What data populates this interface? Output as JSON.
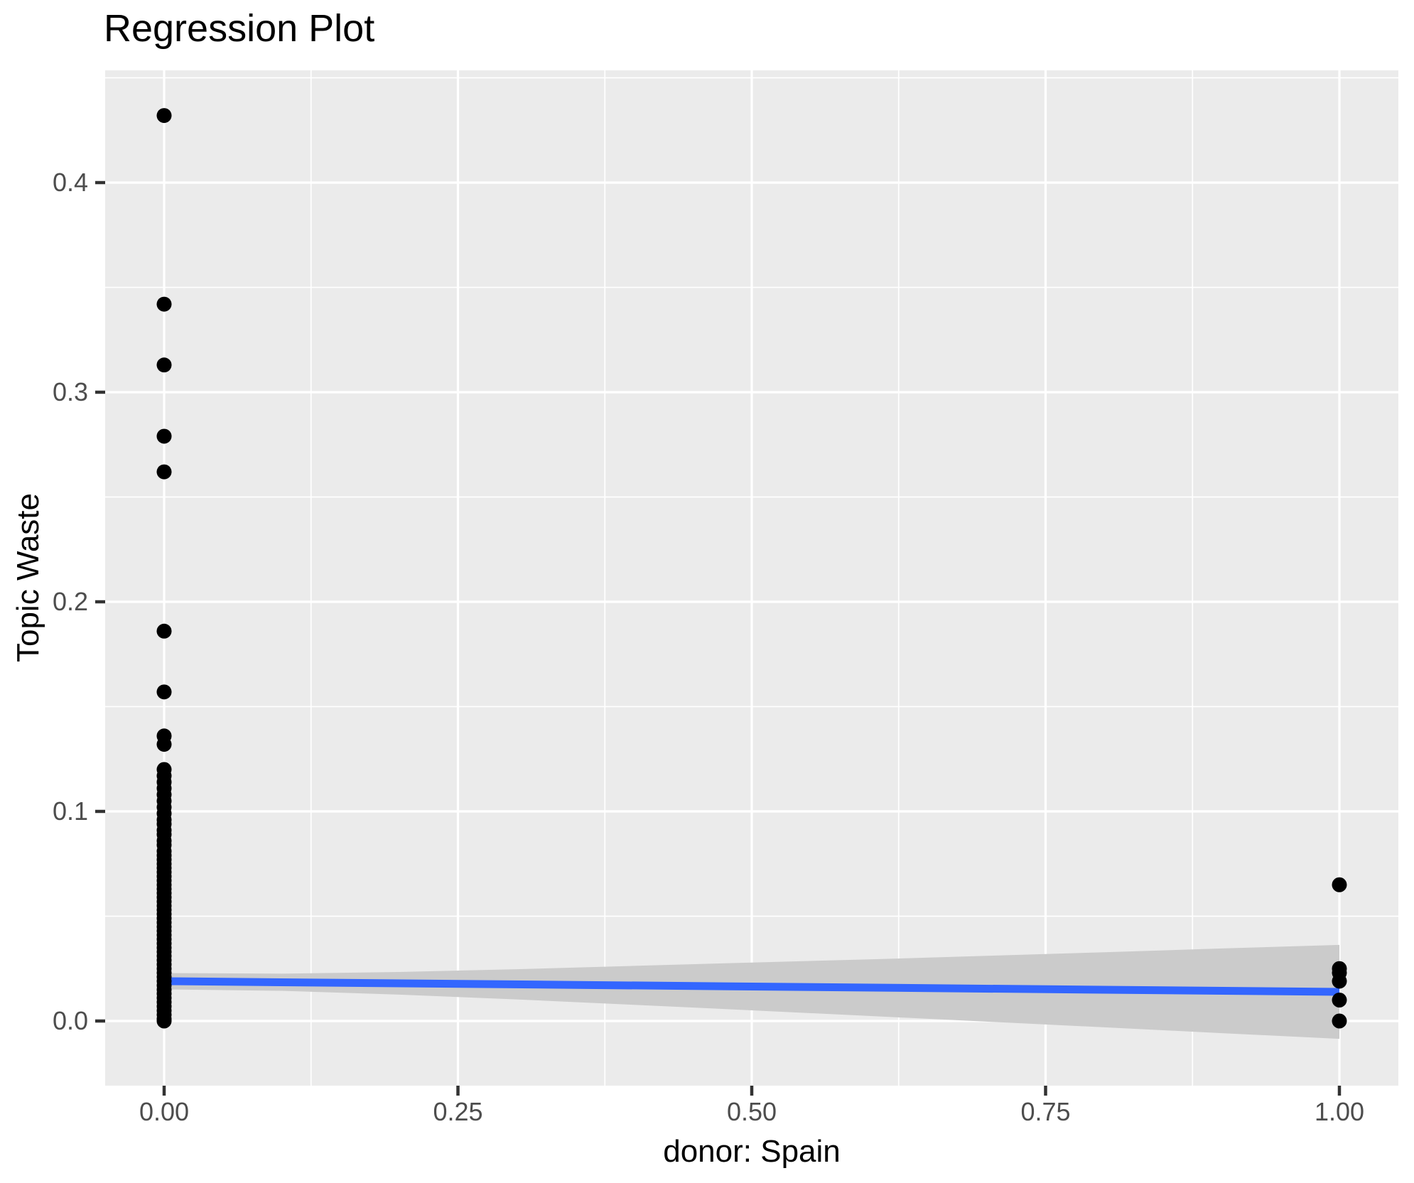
{
  "title": "Regression Plot",
  "chart_data": {
    "type": "scatter",
    "title": "Regression Plot",
    "xlabel": "donor: Spain",
    "ylabel": "Topic Waste",
    "xlim": [
      -0.05,
      1.05
    ],
    "ylim": [
      -0.031,
      0.454
    ],
    "grid": true,
    "legend": false,
    "x_ticks": {
      "values": [
        0,
        0.25,
        0.5,
        0.75,
        1.0
      ],
      "labels": [
        "0.00",
        "0.25",
        "0.50",
        "0.75",
        "1.00"
      ]
    },
    "y_ticks": {
      "values": [
        0.0,
        0.1,
        0.2,
        0.3,
        0.4
      ],
      "labels": [
        "0.0",
        "0.1",
        "0.2",
        "0.3",
        "0.4"
      ]
    },
    "x_minor": [
      0.125,
      0.375,
      0.625,
      0.875
    ],
    "y_minor": [
      0.05,
      0.15,
      0.25,
      0.35,
      0.45
    ],
    "series": [
      {
        "name": "points at donor=0",
        "x_value": 0,
        "y_values": [
          0.432,
          0.342,
          0.313,
          0.279,
          0.262,
          0.186,
          0.157,
          0.136,
          0.132,
          0.12,
          0.117,
          0.114,
          0.111,
          0.108,
          0.105,
          0.102,
          0.099,
          0.096,
          0.094,
          0.091,
          0.089,
          0.086,
          0.084,
          0.081,
          0.079,
          0.077,
          0.075,
          0.073,
          0.071,
          0.069,
          0.067,
          0.065,
          0.063,
          0.061,
          0.059,
          0.057,
          0.055,
          0.053,
          0.051,
          0.049,
          0.047,
          0.045,
          0.043,
          0.041,
          0.039,
          0.037,
          0.035,
          0.033,
          0.031,
          0.029,
          0.027,
          0.025,
          0.023,
          0.021,
          0.019,
          0.017,
          0.015,
          0.013,
          0.011,
          0.009,
          0.007,
          0.005,
          0.003,
          0.001,
          0.0
        ]
      },
      {
        "name": "points at donor=1",
        "x_value": 1,
        "y_values": [
          0.065,
          0.025,
          0.023,
          0.019,
          0.01,
          0.0
        ]
      }
    ],
    "regression_line": {
      "x": [
        0,
        1
      ],
      "y": [
        0.019,
        0.0139
      ]
    },
    "confidence_band": {
      "x": [
        0.0,
        0.1,
        0.2,
        0.3,
        0.4,
        0.5,
        0.6,
        0.7,
        0.8,
        0.9,
        1.0
      ],
      "upper": [
        0.0229,
        0.0226,
        0.0234,
        0.0247,
        0.0263,
        0.0279,
        0.0294,
        0.0311,
        0.0328,
        0.0346,
        0.0363
      ],
      "lower": [
        0.0151,
        0.0144,
        0.0126,
        0.0103,
        0.0077,
        0.0051,
        0.0024,
        -0.0003,
        -0.003,
        -0.0058,
        -0.0085
      ]
    },
    "colors": {
      "background": "#FFFFFF",
      "panel": "#EBEBEB",
      "grid": "#FFFFFF",
      "point": "#000000",
      "line": "#3366FF",
      "band": "#CBCBCB",
      "tick_mark": "#333333",
      "tick_label": "#4D4D4D",
      "title": "#000000"
    }
  }
}
